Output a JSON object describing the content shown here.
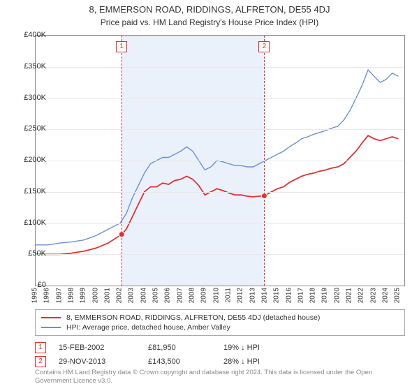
{
  "title": "8, EMMERSON ROAD, RIDDINGS, ALFRETON, DE55 4DJ",
  "subtitle": "Price paid vs. HM Land Registry's House Price Index (HPI)",
  "chart": {
    "type": "line",
    "background_color": "#ffffff",
    "grid_color": "#e8e8e8",
    "border_color": "#888888",
    "shade_color": "#eaf1fa",
    "label_fontsize": 11,
    "x_range": [
      1995,
      2025.5
    ],
    "y_range": [
      0,
      400000
    ],
    "ytick_step": 50000,
    "yticks": [
      "£0",
      "£50K",
      "£100K",
      "£150K",
      "£200K",
      "£250K",
      "£300K",
      "£350K",
      "£400K"
    ],
    "xticks": [
      1995,
      1996,
      1997,
      1998,
      1999,
      2000,
      2001,
      2002,
      2003,
      2004,
      2005,
      2006,
      2007,
      2008,
      2009,
      2010,
      2011,
      2012,
      2013,
      2014,
      2015,
      2016,
      2017,
      2018,
      2019,
      2020,
      2021,
      2022,
      2023,
      2024,
      2025
    ],
    "series": [
      {
        "name": "price_paid",
        "label": "8, EMMERSON ROAD, RIDDINGS, ALFRETON, DE55 4DJ (detached house)",
        "color": "#e03030",
        "line_width": 1.8,
        "points": [
          [
            1995.0,
            50000
          ],
          [
            1996.0,
            50000
          ],
          [
            1997.0,
            50000
          ],
          [
            1998.0,
            52000
          ],
          [
            1999.0,
            55000
          ],
          [
            2000.0,
            60000
          ],
          [
            2001.0,
            68000
          ],
          [
            2002.12,
            81950
          ],
          [
            2002.5,
            90000
          ],
          [
            2003.0,
            110000
          ],
          [
            2003.5,
            130000
          ],
          [
            2004.0,
            150000
          ],
          [
            2004.5,
            158000
          ],
          [
            2005.0,
            158000
          ],
          [
            2005.5,
            164000
          ],
          [
            2006.0,
            162000
          ],
          [
            2006.5,
            168000
          ],
          [
            2007.0,
            170000
          ],
          [
            2007.5,
            175000
          ],
          [
            2008.0,
            170000
          ],
          [
            2008.5,
            160000
          ],
          [
            2009.0,
            145000
          ],
          [
            2009.5,
            150000
          ],
          [
            2010.0,
            155000
          ],
          [
            2010.5,
            152000
          ],
          [
            2011.0,
            148000
          ],
          [
            2011.5,
            145000
          ],
          [
            2012.0,
            145000
          ],
          [
            2012.5,
            143000
          ],
          [
            2013.0,
            142000
          ],
          [
            2013.5,
            143000
          ],
          [
            2013.91,
            143500
          ],
          [
            2014.5,
            150000
          ],
          [
            2015.0,
            155000
          ],
          [
            2015.5,
            158000
          ],
          [
            2016.0,
            165000
          ],
          [
            2016.5,
            170000
          ],
          [
            2017.0,
            175000
          ],
          [
            2017.5,
            178000
          ],
          [
            2018.0,
            180000
          ],
          [
            2018.5,
            183000
          ],
          [
            2019.0,
            185000
          ],
          [
            2019.5,
            188000
          ],
          [
            2020.0,
            190000
          ],
          [
            2020.5,
            195000
          ],
          [
            2021.0,
            205000
          ],
          [
            2021.5,
            215000
          ],
          [
            2022.0,
            228000
          ],
          [
            2022.5,
            240000
          ],
          [
            2023.0,
            235000
          ],
          [
            2023.5,
            232000
          ],
          [
            2024.0,
            235000
          ],
          [
            2024.5,
            238000
          ],
          [
            2025.0,
            235000
          ]
        ]
      },
      {
        "name": "hpi",
        "label": "HPI: Average price, detached house, Amber Valley",
        "color": "#6a8fd8",
        "line_width": 1.4,
        "points": [
          [
            1995.0,
            65000
          ],
          [
            1996.0,
            65000
          ],
          [
            1997.0,
            68000
          ],
          [
            1998.0,
            70000
          ],
          [
            1999.0,
            73000
          ],
          [
            2000.0,
            80000
          ],
          [
            2001.0,
            90000
          ],
          [
            2002.0,
            100000
          ],
          [
            2002.5,
            115000
          ],
          [
            2003.0,
            140000
          ],
          [
            2003.5,
            160000
          ],
          [
            2004.0,
            180000
          ],
          [
            2004.5,
            195000
          ],
          [
            2005.0,
            200000
          ],
          [
            2005.5,
            205000
          ],
          [
            2006.0,
            205000
          ],
          [
            2006.5,
            210000
          ],
          [
            2007.0,
            215000
          ],
          [
            2007.5,
            222000
          ],
          [
            2008.0,
            215000
          ],
          [
            2008.5,
            200000
          ],
          [
            2009.0,
            185000
          ],
          [
            2009.5,
            190000
          ],
          [
            2010.0,
            200000
          ],
          [
            2010.5,
            198000
          ],
          [
            2011.0,
            195000
          ],
          [
            2011.5,
            192000
          ],
          [
            2012.0,
            192000
          ],
          [
            2012.5,
            190000
          ],
          [
            2013.0,
            190000
          ],
          [
            2013.5,
            195000
          ],
          [
            2014.0,
            200000
          ],
          [
            2014.5,
            205000
          ],
          [
            2015.0,
            210000
          ],
          [
            2015.5,
            215000
          ],
          [
            2016.0,
            222000
          ],
          [
            2016.5,
            228000
          ],
          [
            2017.0,
            235000
          ],
          [
            2017.5,
            238000
          ],
          [
            2018.0,
            242000
          ],
          [
            2018.5,
            245000
          ],
          [
            2019.0,
            248000
          ],
          [
            2019.5,
            252000
          ],
          [
            2020.0,
            255000
          ],
          [
            2020.5,
            265000
          ],
          [
            2021.0,
            280000
          ],
          [
            2021.5,
            300000
          ],
          [
            2022.0,
            320000
          ],
          [
            2022.5,
            345000
          ],
          [
            2023.0,
            335000
          ],
          [
            2023.5,
            325000
          ],
          [
            2024.0,
            330000
          ],
          [
            2024.5,
            340000
          ],
          [
            2025.0,
            335000
          ]
        ]
      }
    ],
    "markers": [
      {
        "id": "1",
        "x": 2002.12,
        "y": 81950,
        "color": "#e03030"
      },
      {
        "id": "2",
        "x": 2013.91,
        "y": 143500,
        "color": "#e03030"
      }
    ],
    "shade_range": [
      2002.12,
      2013.91
    ]
  },
  "legend": {
    "rows": [
      {
        "color": "#e03030",
        "label": "8, EMMERSON ROAD, RIDDINGS, ALFRETON, DE55 4DJ (detached house)"
      },
      {
        "color": "#6a8fd8",
        "label": "HPI: Average price, detached house, Amber Valley"
      }
    ]
  },
  "sales": [
    {
      "marker": "1",
      "date": "15-FEB-2002",
      "price": "£81,950",
      "pct": "19% ↓ HPI"
    },
    {
      "marker": "2",
      "date": "29-NOV-2013",
      "price": "£143,500",
      "pct": "28% ↓ HPI"
    }
  ],
  "footnote": "Contains HM Land Registry data © Crown copyright and database right 2024. This data is licensed under the Open Government Licence v3.0."
}
